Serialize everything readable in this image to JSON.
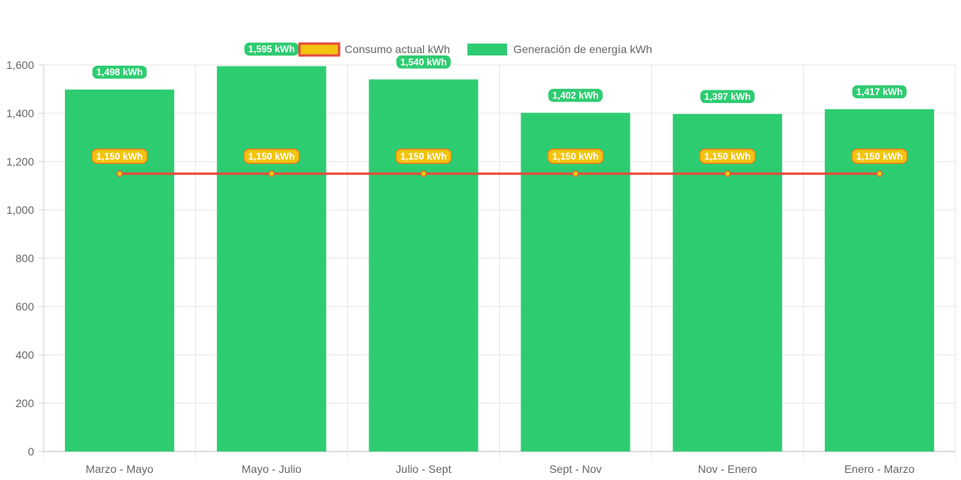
{
  "chart_data": {
    "type": "bar",
    "categories": [
      "Marzo - Mayo",
      "Mayo - Julio",
      "Julio - Sept",
      "Sept - Nov",
      "Nov - Enero",
      "Enero - Marzo"
    ],
    "series": [
      {
        "name": "Consumo actual kWh",
        "kind": "line",
        "values": [
          1150,
          1150,
          1150,
          1150,
          1150,
          1150
        ],
        "data_labels": [
          "1,150 kWh",
          "1,150 kWh",
          "1,150 kWh",
          "1,150 kWh",
          "1,150 kWh",
          "1,150 kWh"
        ],
        "line_color": "#e74c3c",
        "fill_color": "#f1c40f"
      },
      {
        "name": "Generación de energía kWh",
        "kind": "bar",
        "values": [
          1498,
          1595,
          1540,
          1402,
          1397,
          1417
        ],
        "data_labels": [
          "1,498 kWh",
          "1,595 kWh",
          "1,540 kWh",
          "1,402 kWh",
          "1,397 kWh",
          "1,417 kWh"
        ],
        "color": "#2ecc71"
      }
    ],
    "y_ticks": [
      0,
      200,
      400,
      600,
      800,
      1000,
      1200,
      1400,
      1600
    ],
    "y_tick_labels": [
      "0",
      "200",
      "400",
      "600",
      "800",
      "1,000",
      "1,200",
      "1,400",
      "1,600"
    ],
    "ylim": [
      0,
      1600
    ],
    "legend_position": "top",
    "grid": true,
    "title": "",
    "xlabel": "",
    "ylabel": ""
  }
}
